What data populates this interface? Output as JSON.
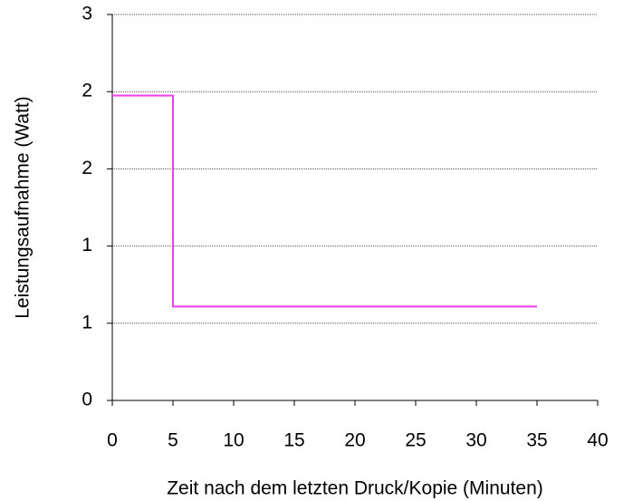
{
  "chart_data": {
    "type": "line",
    "x_label": "Zeit nach dem letzten Druck/Kopie (Minuten)",
    "y_label": "Leistungsaufnahme (Watt)",
    "x": [
      0,
      5,
      5,
      35
    ],
    "series": [
      {
        "name": "Leistungsaufnahme",
        "color": "#ee3ee6",
        "values": [
          2.37,
          2.37,
          0.73,
          0.73
        ]
      }
    ],
    "xlim": [
      0,
      40
    ],
    "xticks": [
      0,
      5,
      10,
      15,
      20,
      25,
      30,
      35,
      40
    ],
    "ylim": [
      0,
      3
    ],
    "yticks": [
      0,
      {
        "value": 0.6,
        "label": "1"
      },
      {
        "value": 1.2,
        "label": "1"
      },
      {
        "value": 1.8,
        "label": "2"
      },
      {
        "value": 2.4,
        "label": "2"
      },
      3
    ],
    "grid": true
  }
}
